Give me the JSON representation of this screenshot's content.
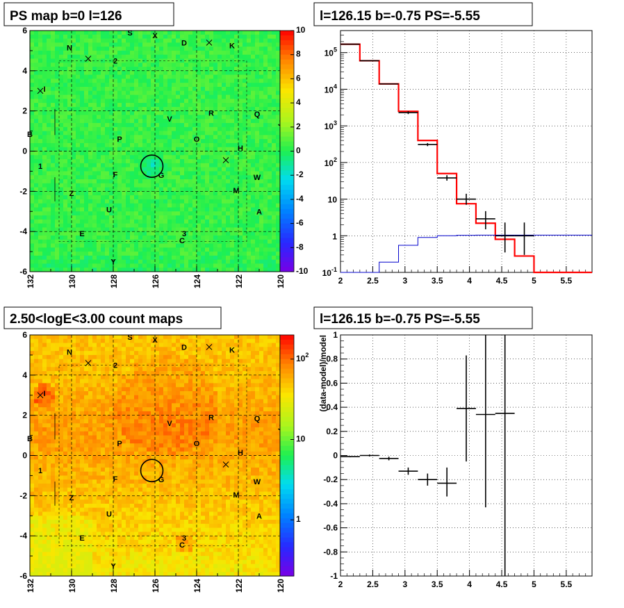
{
  "chart_data": [
    {
      "type": "heatmap",
      "title": "PS map b=0 l=126",
      "xlim": [
        132,
        120
      ],
      "ylim": [
        -6,
        6
      ],
      "x_ticks": [
        "132",
        "130",
        "128",
        "126",
        "124",
        "122",
        "120"
      ],
      "y_ticks": [
        "-6",
        "-4",
        "-2",
        "0",
        "2",
        "4",
        "6"
      ],
      "colorbar_ticks": [
        "10",
        "8",
        "6",
        "4",
        "2",
        "0",
        "-2",
        "-4",
        "-6",
        "-8",
        "-10"
      ],
      "colorbar_range": [
        -10,
        10
      ],
      "grid": true,
      "marker_circle": {
        "l": 126.15,
        "b": -0.75
      },
      "sources": [
        {
          "label": "S",
          "l": 127.2,
          "b": 5.9
        },
        {
          "label": "X",
          "l": 126.0,
          "b": 5.75
        },
        {
          "label": "D",
          "l": 124.6,
          "b": 5.4
        },
        {
          "label": "K",
          "l": 122.3,
          "b": 5.25
        },
        {
          "label": "N",
          "l": 130.1,
          "b": 5.15
        },
        {
          "label": "2",
          "l": 127.9,
          "b": 4.5
        },
        {
          "label": "I",
          "l": 131.3,
          "b": 3.1
        },
        {
          "label": "V",
          "l": 125.3,
          "b": 1.6
        },
        {
          "label": "R",
          "l": 123.3,
          "b": 1.9
        },
        {
          "label": "Q",
          "l": 121.1,
          "b": 1.85
        },
        {
          "label": "J",
          "l": 120.0,
          "b": 1.4
        },
        {
          "label": "B",
          "l": 132.0,
          "b": 0.85
        },
        {
          "label": "P",
          "l": 127.7,
          "b": 0.6
        },
        {
          "label": "O",
          "l": 124.0,
          "b": 0.6
        },
        {
          "label": "H",
          "l": 121.9,
          "b": 0.15
        },
        {
          "label": "1",
          "l": 131.5,
          "b": -0.75
        },
        {
          "label": "F",
          "l": 127.9,
          "b": -1.15
        },
        {
          "label": "G",
          "l": 125.7,
          "b": -1.2
        },
        {
          "label": "W",
          "l": 121.1,
          "b": -1.3
        },
        {
          "label": "M",
          "l": 122.1,
          "b": -1.95
        },
        {
          "label": "Z",
          "l": 130.0,
          "b": -2.1
        },
        {
          "label": "U",
          "l": 128.2,
          "b": -2.9
        },
        {
          "label": "A",
          "l": 121.0,
          "b": -3.0
        },
        {
          "label": "E",
          "l": 129.5,
          "b": -4.1
        },
        {
          "label": "3",
          "l": 124.6,
          "b": -4.1
        },
        {
          "label": "C",
          "l": 124.7,
          "b": -4.45
        },
        {
          "label": "Y",
          "l": 128.0,
          "b": -5.5
        }
      ],
      "crosses": [
        {
          "l": 123.4,
          "b": 5.4
        },
        {
          "l": 129.2,
          "b": 4.6
        },
        {
          "l": 131.5,
          "b": 3.0
        },
        {
          "l": 122.6,
          "b": -0.45
        }
      ]
    },
    {
      "type": "line",
      "title": "l=126.15 b=-0.75 PS=-5.55",
      "xlim": [
        2,
        5.9
      ],
      "ylim": [
        0.1,
        400000
      ],
      "log_y": true,
      "grid": true,
      "x_ticks": [
        "2",
        "2.5",
        "3",
        "3.5",
        "4",
        "4.5",
        "5",
        "5.5"
      ],
      "y_ticks": [
        "10^-1",
        "1",
        "10",
        "10^2",
        "10^3",
        "10^4",
        "10^5"
      ],
      "bin_edges": [
        2.0,
        2.3,
        2.6,
        2.9,
        3.2,
        3.5,
        3.8,
        4.1,
        4.4,
        4.7,
        5.0,
        5.3,
        5.6,
        5.9
      ],
      "series": [
        {
          "color": "#ff0000",
          "values": [
            170000,
            60000,
            14000,
            2500,
            400,
            50,
            7.5,
            2.2,
            0.8,
            0.28,
            0.1,
            0.1,
            0.1
          ]
        },
        {
          "color": "#0000cc",
          "values": [
            0.1,
            0.1,
            0.19,
            0.55,
            0.9,
            1.0,
            1.03,
            1.04,
            1.04,
            1.04,
            1.04,
            1.04,
            1.04
          ]
        }
      ],
      "data_points": [
        {
          "x": 2.15,
          "y": 170000
        },
        {
          "x": 2.45,
          "y": 60000
        },
        {
          "x": 2.75,
          "y": 14000
        },
        {
          "x": 3.05,
          "y": 2300,
          "ylo": 2100,
          "yhi": 2500
        },
        {
          "x": 3.35,
          "y": 310,
          "ylo": 280,
          "yhi": 340
        },
        {
          "x": 3.65,
          "y": 38,
          "ylo": 32,
          "yhi": 45
        },
        {
          "x": 3.95,
          "y": 10,
          "ylo": 7,
          "yhi": 14
        },
        {
          "x": 4.25,
          "y": 2.9,
          "ylo": 1.5,
          "yhi": 4.7
        },
        {
          "x": 4.55,
          "y": 1.0,
          "ylo": 0.35,
          "yhi": 2.3
        },
        {
          "x": 4.85,
          "y": 1.0,
          "ylo": 0.3,
          "yhi": 2.3
        }
      ]
    },
    {
      "type": "heatmap",
      "title": "2.50<logE<3.00 count maps",
      "xlim": [
        132,
        120
      ],
      "ylim": [
        -6,
        6
      ],
      "x_ticks": [
        "132",
        "130",
        "128",
        "126",
        "124",
        "122",
        "120"
      ],
      "y_ticks": [
        "-6",
        "-4",
        "-2",
        "0",
        "2",
        "4",
        "6"
      ],
      "colorbar_ticks": [
        "10^2",
        "10",
        "1"
      ],
      "colorbar_log": true,
      "colorbar_range": [
        0.2,
        200
      ],
      "grid": true,
      "marker_circle": {
        "l": 126.15,
        "b": -0.75
      }
    },
    {
      "type": "scatter",
      "title": "l=126.15 b=-0.75 PS=-5.55",
      "ylabel": "(data-model)/model",
      "xlim": [
        2,
        5.9
      ],
      "ylim": [
        -1,
        1
      ],
      "grid": true,
      "x_ticks": [
        "2",
        "2.5",
        "3",
        "3.5",
        "4",
        "4.5",
        "5",
        "5.5"
      ],
      "y_ticks": [
        "-1",
        "-0.8",
        "-0.6",
        "-0.4",
        "-0.2",
        "0",
        "0.2",
        "0.4",
        "0.6",
        "0.8",
        "1"
      ],
      "points": [
        {
          "x": 2.15,
          "y": -0.01,
          "ylo": -0.015,
          "yhi": -0.005
        },
        {
          "x": 2.45,
          "y": 0.0,
          "ylo": -0.008,
          "yhi": 0.008
        },
        {
          "x": 2.75,
          "y": -0.025,
          "ylo": -0.04,
          "yhi": -0.01
        },
        {
          "x": 3.05,
          "y": -0.13,
          "ylo": -0.16,
          "yhi": -0.1
        },
        {
          "x": 3.35,
          "y": -0.2,
          "ylo": -0.25,
          "yhi": -0.15
        },
        {
          "x": 3.65,
          "y": -0.23,
          "ylo": -0.34,
          "yhi": -0.1
        },
        {
          "x": 3.95,
          "y": 0.39,
          "ylo": -0.05,
          "yhi": 0.83
        },
        {
          "x": 4.25,
          "y": 0.34,
          "ylo": -0.43,
          "yhi": 1.0
        },
        {
          "x": 4.55,
          "y": 0.35,
          "ylo": -1.0,
          "yhi": 1.0
        }
      ]
    }
  ]
}
